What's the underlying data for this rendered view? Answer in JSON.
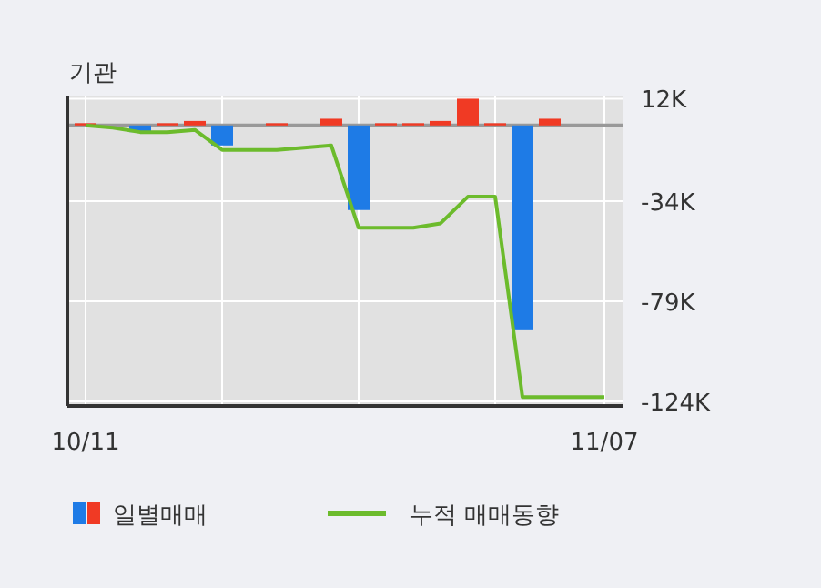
{
  "chart_data": {
    "type": "bar",
    "title": "기관",
    "categories": [
      "10/11",
      null,
      null,
      null,
      null,
      null,
      null,
      null,
      null,
      null,
      null,
      null,
      null,
      null,
      null,
      null,
      null,
      null,
      null,
      "11/07"
    ],
    "series": [
      {
        "name": "일별매매",
        "colors": [
          "#f03a24",
          "#f03a24",
          "#1e7be6",
          "#f03a24",
          "#f03a24",
          "#1e7be6",
          "#f03a24",
          "#f03a24",
          "#f03a24",
          "#f03a24",
          "#1e7be6",
          "#f03a24",
          "#f03a24",
          "#f03a24",
          "#f03a24",
          "#f03a24",
          "#1e7be6",
          "#f03a24",
          "#f03a24",
          "#f03a24"
        ],
        "values": [
          1000,
          0,
          -3000,
          1000,
          2000,
          -9000,
          0,
          1000,
          0,
          3000,
          -38000,
          1000,
          1000,
          2000,
          12000,
          1000,
          -92000,
          3000,
          0,
          0
        ]
      },
      {
        "name": "누적 매매동향",
        "type": "line",
        "color": "#6cbb2c",
        "values": [
          0,
          -1000,
          -3000,
          -3000,
          -2000,
          -11000,
          -11000,
          -11000,
          -10000,
          -9000,
          -46000,
          -46000,
          -46000,
          -44000,
          -32000,
          -32000,
          -122000,
          -122000,
          -122000,
          -122000
        ]
      }
    ],
    "ylim": [
      -126000,
      13000
    ],
    "yticks": [
      {
        "value": 12000,
        "label": "12K"
      },
      {
        "value": -34000,
        "label": "-34K"
      },
      {
        "value": -79000,
        "label": "-79K"
      },
      {
        "value": -124000,
        "label": "-124K"
      }
    ],
    "ref_lines": [
      {
        "axis": "y",
        "value": 0,
        "color": "#999999"
      }
    ],
    "grid": true,
    "legend": "bottom"
  }
}
